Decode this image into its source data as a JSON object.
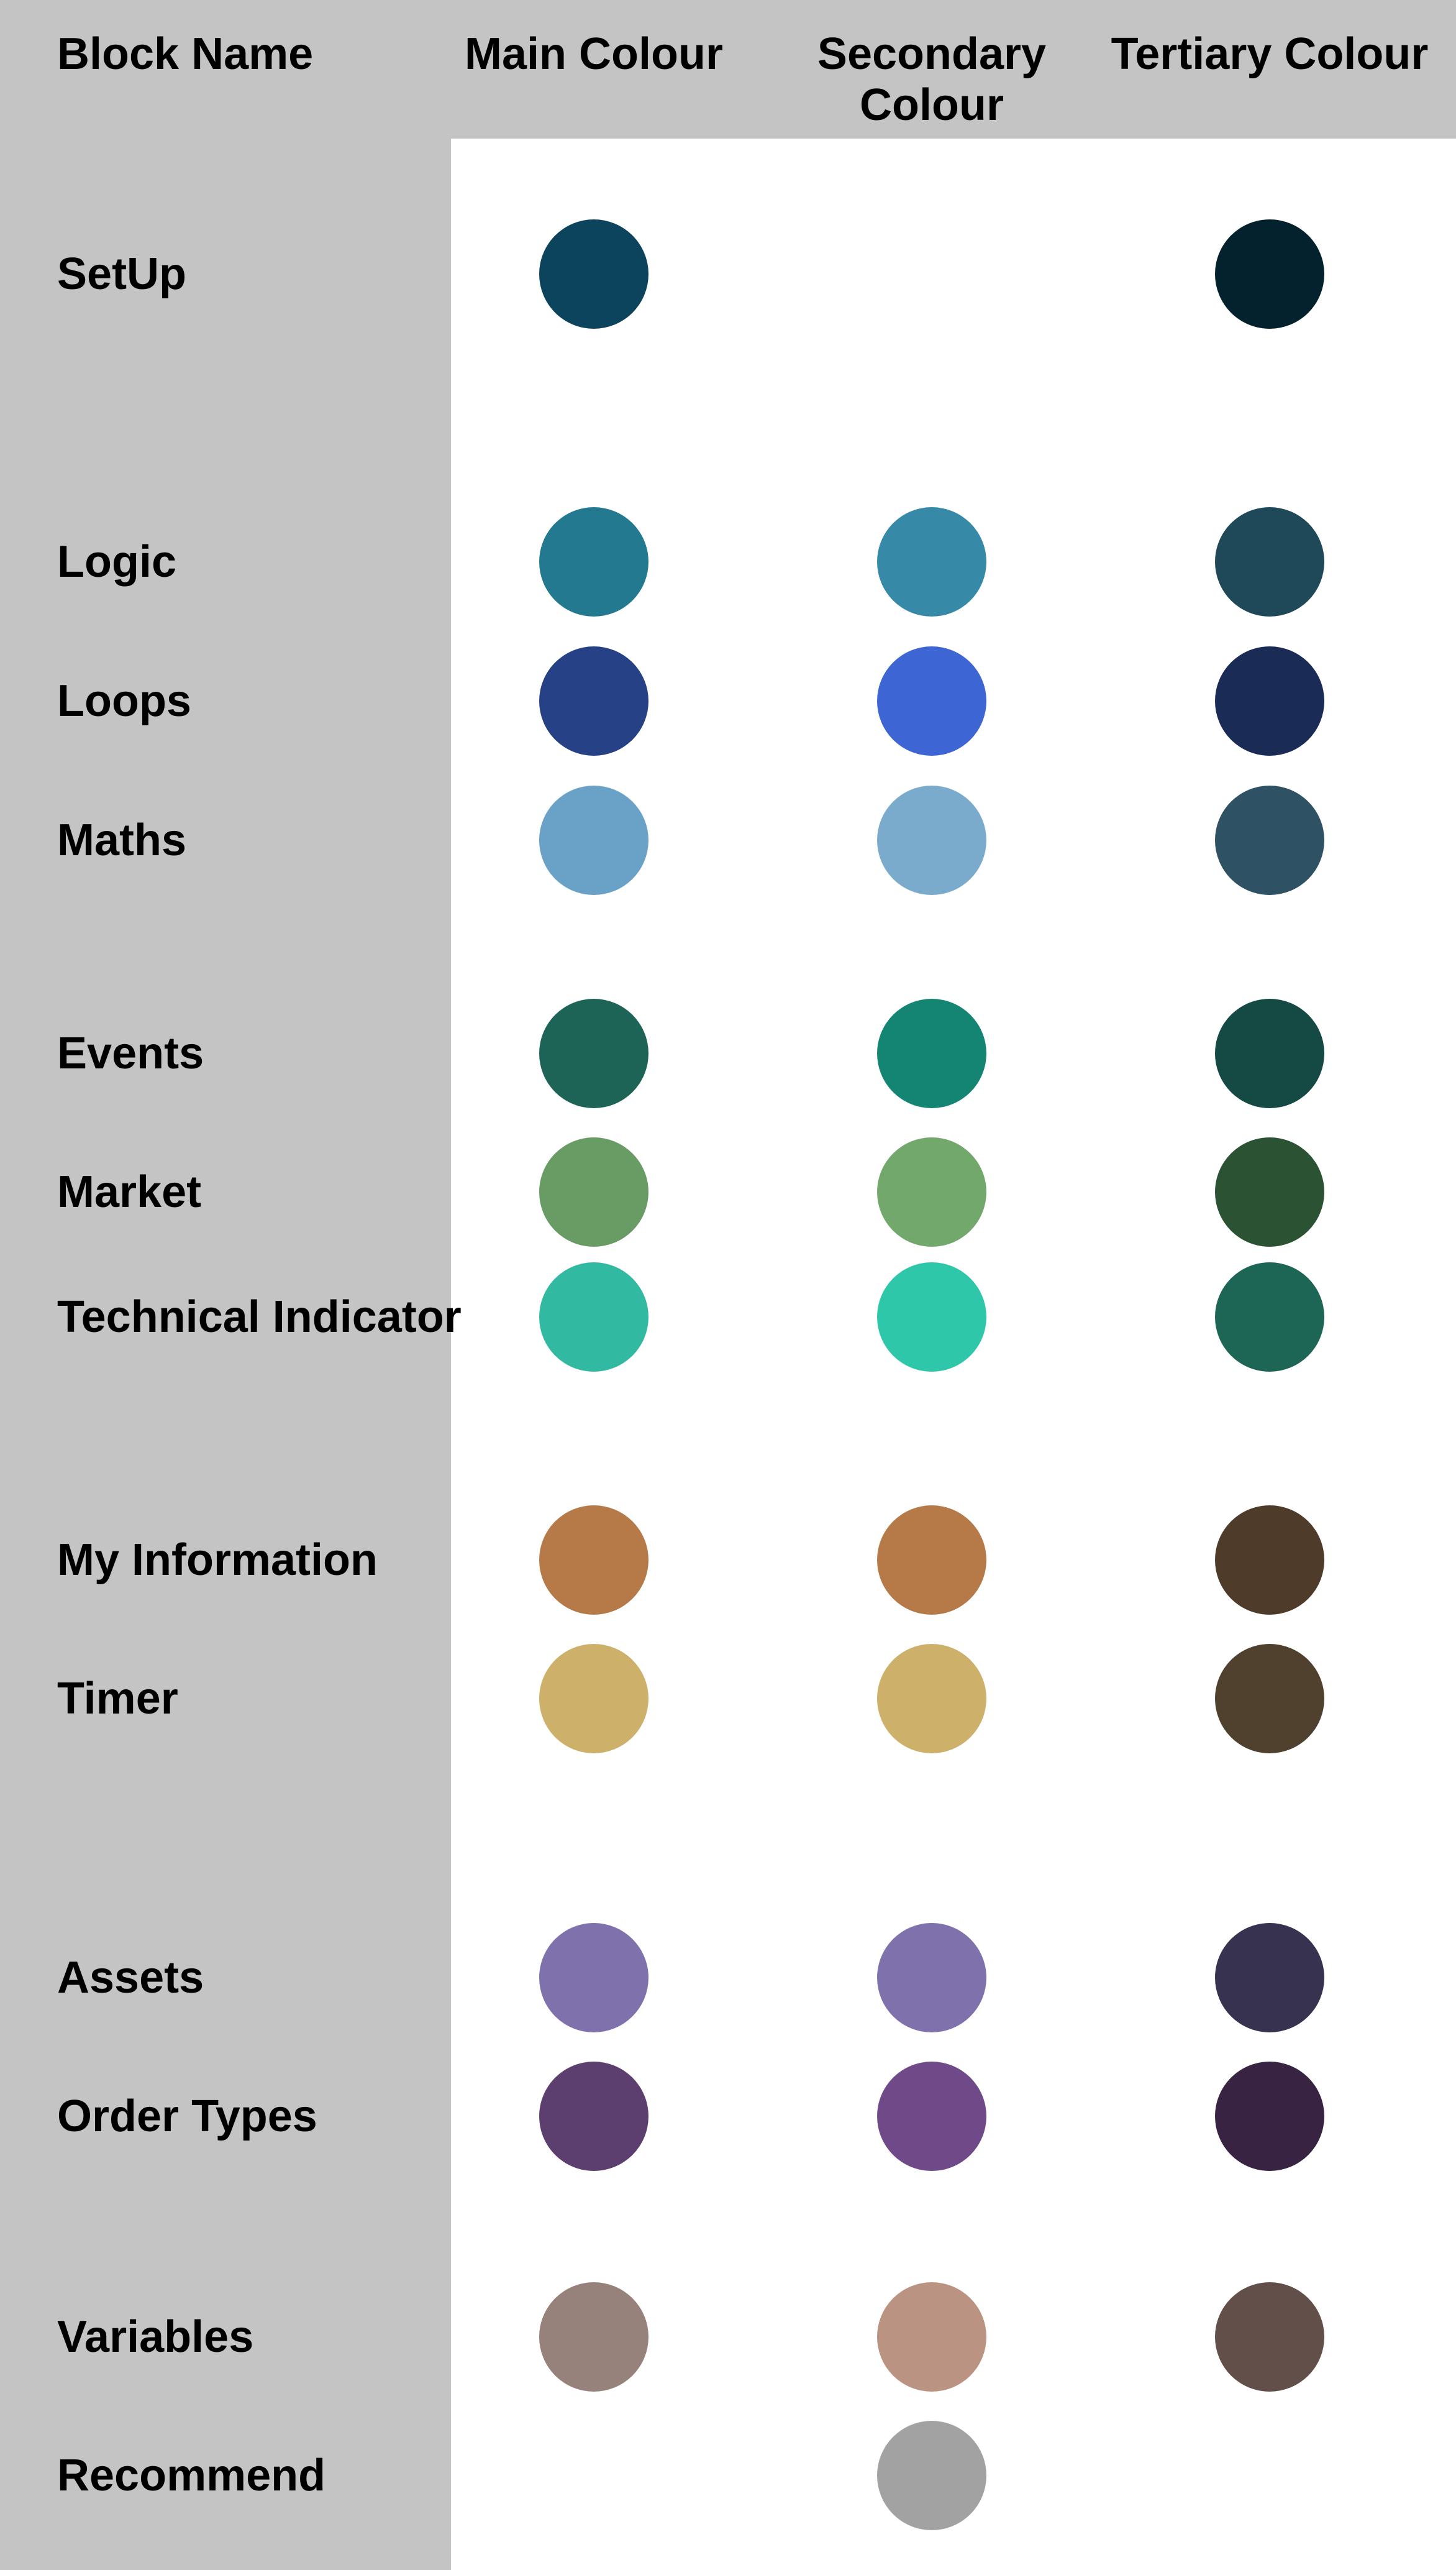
{
  "headers": {
    "block_name": "Block Name",
    "main": "Main Colour",
    "secondary": "Secondary Colour",
    "tertiary": "Tertiary Colour"
  },
  "rows": [
    {
      "name": "SetUp",
      "main": "#0c435d",
      "secondary": null,
      "tertiary": "#04222d"
    },
    {
      "name": "Logic",
      "main": "#237a90",
      "secondary": "#368aa8",
      "tertiary": "#1f4958"
    },
    {
      "name": "Loops",
      "main": "#274186",
      "secondary": "#3d66d4",
      "tertiary": "#1a2c55"
    },
    {
      "name": "Maths",
      "main": "#6aa1c6",
      "secondary": "#7babcc",
      "tertiary": "#2e5264"
    },
    {
      "name": "Events",
      "main": "#1d6456",
      "secondary": "#138572",
      "tertiary": "#144944"
    },
    {
      "name": "Market",
      "main": "#699b65",
      "secondary": "#73a86c",
      "tertiary": "#2a5233"
    },
    {
      "name": "Technical Indicator",
      "main": "#32b9a1",
      "secondary": "#2ec7a9",
      "tertiary": "#1d6555"
    },
    {
      "name": "My Information",
      "main": "#b57a47",
      "secondary": "#b57a47",
      "tertiary": "#4e3b2a"
    },
    {
      "name": "Timer",
      "main": "#cdb16b",
      "secondary": "#cdb16b",
      "tertiary": "#4f412d"
    },
    {
      "name": "Assets",
      "main": "#7f71ab",
      "secondary": "#7f71ab",
      "tertiary": "#363250"
    },
    {
      "name": "Order Types",
      "main": "#5d3f6f",
      "secondary": "#6f4988",
      "tertiary": "#382342"
    },
    {
      "name": "Variables",
      "main": "#96817b",
      "secondary": "#bb9382",
      "tertiary": "#624f49"
    },
    {
      "name": "Recommend",
      "main": null,
      "secondary": "#a2a2a2",
      "tertiary": null
    }
  ]
}
